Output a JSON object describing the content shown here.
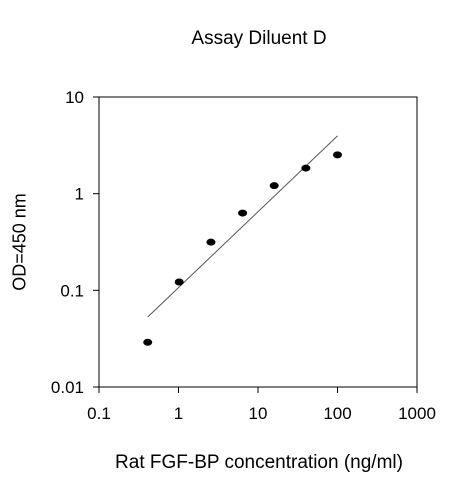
{
  "chart_data": {
    "type": "scatter",
    "title": "Assay Diluent D",
    "xlabel": "Rat FGF-BP concentration (ng/ml)",
    "ylabel": "OD=450 nm",
    "x_scale": "log",
    "y_scale": "log",
    "xlim": [
      0.1,
      1000
    ],
    "ylim": [
      0.01,
      10
    ],
    "x_ticks": [
      "0.1",
      "1",
      "10",
      "100",
      "1000"
    ],
    "y_ticks": [
      "0.01",
      "0.1",
      "1",
      "10"
    ],
    "grid": false,
    "series": [
      {
        "x": [
          0.41,
          1.02,
          2.56,
          6.4,
          16,
          40,
          100
        ],
        "y": [
          0.029,
          0.122,
          0.315,
          0.63,
          1.21,
          1.84,
          2.52
        ]
      }
    ],
    "trendline": {
      "x": [
        0.41,
        100
      ],
      "y": [
        0.053,
        3.96
      ]
    },
    "colors": {
      "points": "#000000",
      "line": "#555555",
      "axes": "#000000"
    }
  }
}
